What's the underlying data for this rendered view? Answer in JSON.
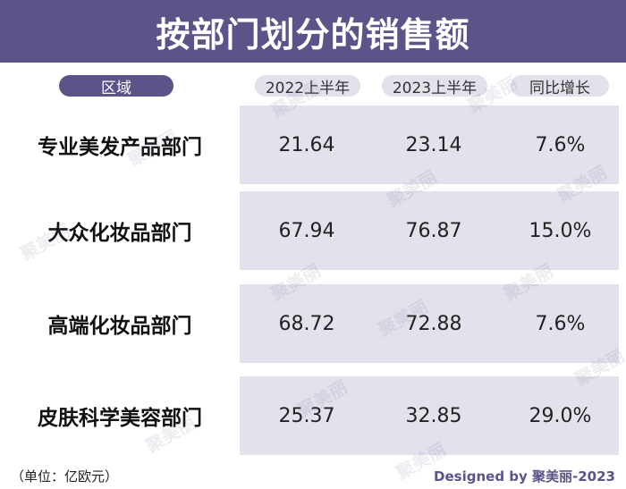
{
  "chart_data": {
    "type": "table",
    "title": "按部门划分的销售额",
    "columns": [
      "区域",
      "2022上半年",
      "2023上半年",
      "同比增长"
    ],
    "rows": [
      {
        "department": "专业美发产品部门",
        "h1_2022": "21.64",
        "h1_2023": "23.14",
        "growth": "7.6%"
      },
      {
        "department": "大众化妆品部门",
        "h1_2022": "67.94",
        "h1_2023": "76.87",
        "growth": "15.0%"
      },
      {
        "department": "高端化妆品部门",
        "h1_2022": "68.72",
        "h1_2023": "72.88",
        "growth": "7.6%"
      },
      {
        "department": "皮肤科学美容部门",
        "h1_2022": "25.37",
        "h1_2023": "32.85",
        "growth": "29.0%"
      }
    ]
  },
  "footer": {
    "unit": "（单位：亿欧元）",
    "credit": "Designed by 聚美丽-2023"
  },
  "watermark": "聚美丽",
  "colors": {
    "accent": "#5d5389",
    "cell_bg": "#e3e1ec"
  }
}
